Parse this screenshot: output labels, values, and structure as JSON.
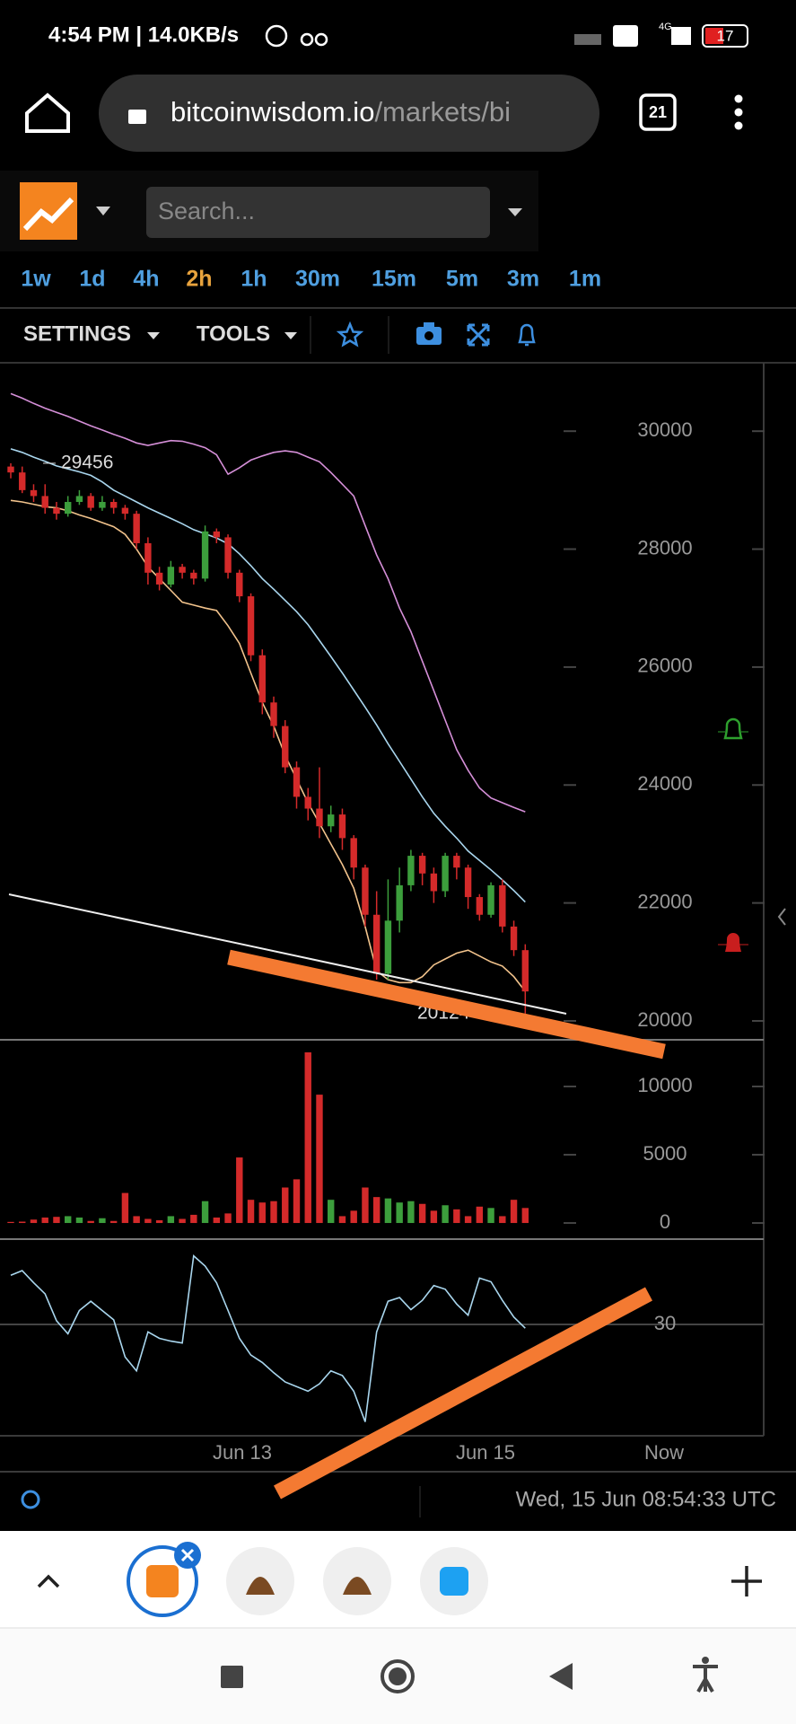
{
  "status_bar": {
    "time": "4:54 PM | 14.0KB/s",
    "network": "4G",
    "battery": 17
  },
  "browser": {
    "url_host": "bitcoinwisdom.io",
    "url_path": "/markets/bi",
    "tab_count": 21
  },
  "app": {
    "search_placeholder": "Search...",
    "timeframes": [
      "1w",
      "1d",
      "4h",
      "2h",
      "1h",
      "30m",
      "15m",
      "5m",
      "3m",
      "1m"
    ],
    "active_timeframe_index": 3,
    "toolbar": [
      "SETTINGS",
      "TOOLS"
    ],
    "timestamp": "Wed, 15 Jun 08:54:33 UTC"
  },
  "chart_data": {
    "type": "candlestick",
    "open": [
      29400,
      29300,
      29000,
      28900,
      28700,
      28600,
      28800,
      28900,
      28700,
      28800,
      28700,
      28600,
      28100,
      27600,
      27400,
      27700,
      27600,
      27500,
      28300,
      28200,
      27600,
      27200,
      26200,
      25400,
      25000,
      24300,
      23800,
      23600,
      23300,
      23500,
      23100,
      22600,
      21800,
      20800,
      21700,
      22300,
      22800,
      22500,
      22200,
      22800,
      22600,
      22100,
      21800,
      22300,
      21600,
      21200
    ],
    "high": [
      29456,
      29400,
      29100,
      29100,
      28800,
      28900,
      29000,
      28950,
      28900,
      28850,
      28750,
      28650,
      28200,
      27700,
      27800,
      27750,
      27650,
      28400,
      28350,
      28250,
      27650,
      27250,
      26300,
      25500,
      25100,
      24400,
      23950,
      24300,
      23650,
      23600,
      23150,
      22650,
      22200,
      22400,
      22600,
      22900,
      22850,
      22600,
      22850,
      22850,
      22650,
      22150,
      22350,
      22400,
      21700,
      21300
    ],
    "low": [
      29200,
      28950,
      28800,
      28600,
      28500,
      28550,
      28750,
      28650,
      28650,
      28600,
      28500,
      28000,
      27400,
      27300,
      27350,
      27500,
      27400,
      27450,
      28100,
      27500,
      27100,
      26100,
      25200,
      24800,
      24200,
      23600,
      23400,
      23100,
      23200,
      22900,
      22400,
      21600,
      20700,
      20700,
      21500,
      22200,
      22300,
      22000,
      22100,
      22400,
      21900,
      21700,
      21750,
      21500,
      21100,
      20124
    ],
    "close": [
      29300,
      29000,
      28900,
      28700,
      28600,
      28800,
      28900,
      28700,
      28800,
      28700,
      28600,
      28100,
      27600,
      27400,
      27700,
      27600,
      27500,
      28300,
      28200,
      27600,
      27200,
      26200,
      25400,
      25000,
      24300,
      23800,
      23600,
      23300,
      23500,
      23100,
      22600,
      21800,
      20800,
      21700,
      22300,
      22800,
      22500,
      22200,
      22800,
      22600,
      22100,
      21800,
      22300,
      21600,
      21200,
      20500
    ],
    "up_color": "#3c9e3c",
    "down_color": "#d42a2a",
    "ylim": [
      19680,
      31160
    ],
    "yticks": [
      20000,
      22000,
      24000,
      26000,
      28000,
      30000
    ],
    "lines": [
      {
        "color": "#d58fd8",
        "values": [
          30636,
          30560,
          30470,
          30390,
          30320,
          30250,
          30170,
          30090,
          30020,
          29946,
          29880,
          29800,
          29760,
          29800,
          29840,
          29830,
          29780,
          29720,
          29600,
          29270,
          29380,
          29510,
          29580,
          29640,
          29666,
          29640,
          29560,
          29480,
          29300,
          29100,
          28900,
          28400,
          27900,
          27500,
          27000,
          26600,
          26100,
          25600,
          25100,
          24600,
          24250,
          23950,
          23780,
          23700,
          23620,
          23545
        ]
      },
      {
        "color": "#a9d6ee",
        "values": [
          29700,
          29640,
          29560,
          29490,
          29410,
          29360,
          29310,
          29250,
          29140,
          29000,
          28900,
          28800,
          28700,
          28610,
          28520,
          28430,
          28330,
          28260,
          28190,
          28090,
          27920,
          27720,
          27500,
          27320,
          27130,
          26940,
          26720,
          26450,
          26180,
          25900,
          25610,
          25320,
          25020,
          24700,
          24400,
          24100,
          23800,
          23520,
          23300,
          23100,
          22880,
          22720,
          22560,
          22390,
          22210,
          22015
        ]
      },
      {
        "color": "#f2c38c",
        "values": [
          28826,
          28800,
          28760,
          28720,
          28700,
          28650,
          28580,
          28520,
          28450,
          28380,
          28250,
          28000,
          27700,
          27500,
          27300,
          27100,
          27050,
          27000,
          26960,
          26700,
          26400,
          25900,
          25400,
          25000,
          24500,
          24100,
          23700,
          23350,
          23000,
          22650,
          22250,
          21600,
          20850,
          20700,
          20650,
          20650,
          20750,
          20950,
          21050,
          21150,
          21200,
          21100,
          21000,
          20930,
          20750,
          20500
        ]
      }
    ],
    "volume": {
      "values": [
        80,
        100,
        250,
        400,
        450,
        500,
        400,
        150,
        350,
        150,
        2200,
        500,
        300,
        200,
        500,
        300,
        600,
        1600,
        400,
        700,
        4800,
        1700,
        1500,
        1600,
        2600,
        3200,
        12500,
        9400,
        1700,
        500,
        900,
        2600,
        1900,
        1800,
        1500,
        1600,
        1400,
        900,
        1300,
        1000,
        500,
        1200,
        1100,
        500,
        1700,
        1100
      ],
      "ylim": [
        -1050,
        13420
      ],
      "yticks": [
        0,
        5000,
        10000
      ]
    },
    "rsi": {
      "color": "#a9d6ee",
      "values": [
        35.3,
        35.8,
        34.5,
        33.3,
        30.4,
        29.0,
        31.5,
        32.5,
        31.5,
        30.5,
        26.5,
        25.0,
        29.2,
        28.5,
        28.2,
        28.0,
        37.4,
        36.3,
        34.5,
        31.5,
        28.5,
        26.7,
        25.9,
        24.8,
        23.8,
        23.3,
        22.8,
        23.6,
        25.0,
        24.5,
        22.8,
        19.5,
        29.2,
        32.5,
        32.9,
        31.6,
        32.6,
        34.2,
        33.8,
        32.2,
        31.0,
        35.0,
        34.6,
        32.6,
        30.8,
        29.6
      ],
      "ylim": [
        18,
        39.2
      ],
      "yticks": [
        30
      ]
    },
    "x_axis_labels": [
      "Jun 13",
      "Jun 15",
      "Now"
    ]
  }
}
